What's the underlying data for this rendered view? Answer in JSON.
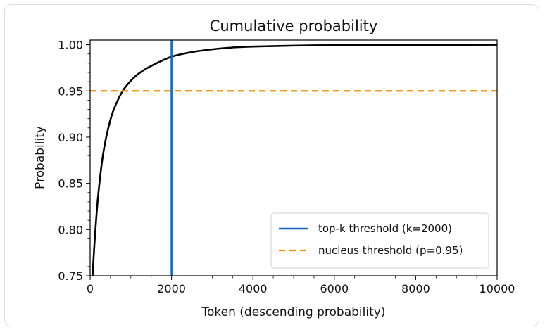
{
  "chart_data": {
    "type": "line",
    "title": "Cumulative probability",
    "xlabel": "Token (descending probability)",
    "ylabel": "Probability",
    "xlim": [
      0,
      10000
    ],
    "ylim": [
      0.75,
      1.005
    ],
    "x_ticks": [
      0,
      2000,
      4000,
      6000,
      8000,
      10000
    ],
    "x_tick_labels": [
      "0",
      "2000",
      "4000",
      "6000",
      "8000",
      "10000"
    ],
    "y_ticks": [
      0.75,
      0.8,
      0.85,
      0.9,
      0.95,
      1.0
    ],
    "y_tick_labels": [
      "0.75",
      "0.80",
      "0.85",
      "0.90",
      "0.95",
      "1.00"
    ],
    "grid": false,
    "legend_position": "bottom-right",
    "series": [
      {
        "name": "",
        "style": "solid",
        "color": "#000000",
        "x": [
          60,
          100,
          150,
          200,
          300,
          400,
          500,
          600,
          800,
          1000,
          1200,
          1500,
          2000,
          2500,
          3000,
          3500,
          4000,
          5000,
          6000,
          7000,
          8000,
          9000,
          10000
        ],
        "y": [
          0.75,
          0.78,
          0.812,
          0.838,
          0.876,
          0.901,
          0.919,
          0.932,
          0.95,
          0.961,
          0.969,
          0.977,
          0.987,
          0.992,
          0.995,
          0.997,
          0.998,
          0.999,
          0.9995,
          0.9997,
          0.9998,
          0.9999,
          1.0
        ]
      }
    ],
    "reference_lines": [
      {
        "name": "top-k threshold (k=2000)",
        "orientation": "vertical",
        "value": 2000,
        "style": "solid",
        "color": "#1565c0"
      },
      {
        "name": "nucleus threshold (p=0.95)",
        "orientation": "horizontal",
        "value": 0.95,
        "style": "dashed",
        "color": "#f28c00"
      }
    ]
  }
}
